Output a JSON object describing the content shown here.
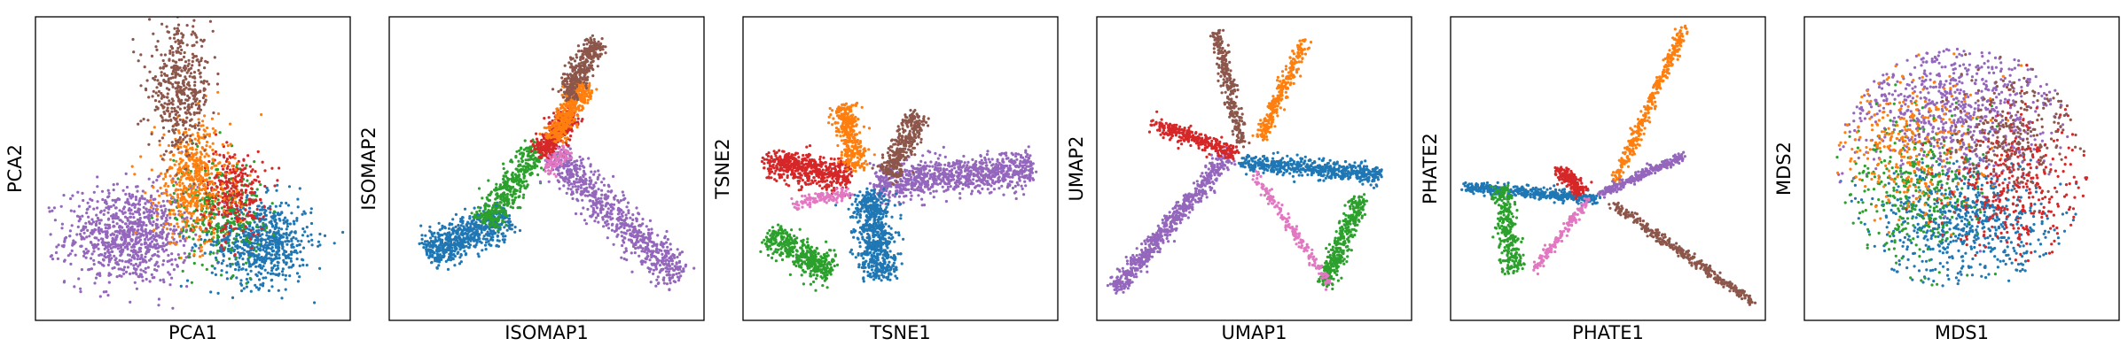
{
  "palette": {
    "blue": "#1f77b4",
    "orange": "#ff7f0e",
    "green": "#2ca02c",
    "red": "#d62728",
    "purple": "#9467bd",
    "brown": "#8c564b",
    "pink": "#e377c2"
  },
  "chart_data": [
    {
      "type": "scatter",
      "xlabel": "PCA1",
      "ylabel": "PCA2",
      "xlim": [
        0,
        100
      ],
      "ylim": [
        0,
        100
      ],
      "grid": false,
      "legend": "none",
      "ticks": "hidden",
      "clusters": [
        {
          "color": "purple",
          "center": [
            30,
            28
          ],
          "spread": [
            10,
            8
          ],
          "n": 900
        },
        {
          "color": "blue",
          "center": [
            72,
            26
          ],
          "spread": [
            8,
            7
          ],
          "n": 700
        },
        {
          "color": "green",
          "center": [
            58,
            36
          ],
          "spread": [
            7,
            9
          ],
          "n": 300
        },
        {
          "color": "red",
          "center": [
            63,
            42
          ],
          "spread": [
            5,
            7
          ],
          "n": 300
        },
        {
          "color": "orange",
          "center": [
            50,
            46
          ],
          "spread": [
            6,
            10
          ],
          "n": 500
        },
        {
          "color": "brown",
          "center": [
            46,
            76
          ],
          "spread": [
            5,
            10
          ],
          "n": 450
        }
      ]
    },
    {
      "type": "scatter",
      "xlabel": "ISOMAP1",
      "ylabel": "ISOMAP2",
      "xlim": [
        0,
        100
      ],
      "ylim": [
        0,
        100
      ],
      "grid": false,
      "legend": "none",
      "ticks": "hidden",
      "arms": [
        {
          "color": "blue",
          "from": [
            12,
            22
          ],
          "to": [
            38,
            34
          ],
          "width": 6,
          "n": 650
        },
        {
          "color": "green",
          "from": [
            30,
            32
          ],
          "to": [
            48,
            58
          ],
          "width": 5,
          "n": 450
        },
        {
          "color": "purple",
          "from": [
            52,
            55
          ],
          "to": [
            92,
            14
          ],
          "width": 6,
          "n": 750
        },
        {
          "color": "red",
          "from": [
            48,
            55
          ],
          "to": [
            58,
            68
          ],
          "width": 4,
          "n": 350
        },
        {
          "color": "orange",
          "from": [
            52,
            60
          ],
          "to": [
            62,
            78
          ],
          "width": 4,
          "n": 400
        },
        {
          "color": "brown",
          "from": [
            56,
            74
          ],
          "to": [
            66,
            92
          ],
          "width": 3.5,
          "n": 350
        },
        {
          "color": "pink",
          "from": [
            50,
            50
          ],
          "to": [
            56,
            56
          ],
          "width": 3,
          "n": 80
        }
      ]
    },
    {
      "type": "scatter",
      "xlabel": "TSNE1",
      "ylabel": "TSNE2",
      "xlim": [
        0,
        100
      ],
      "ylim": [
        0,
        100
      ],
      "grid": false,
      "legend": "none",
      "ticks": "hidden",
      "arms": [
        {
          "color": "purple",
          "from": [
            42,
            45
          ],
          "to": [
            92,
            50
          ],
          "width": 6,
          "n": 900
        },
        {
          "color": "red",
          "from": [
            8,
            52
          ],
          "to": [
            34,
            47
          ],
          "width": 5,
          "n": 550
        },
        {
          "color": "orange",
          "from": [
            32,
            71
          ],
          "to": [
            36,
            50
          ],
          "width": 4,
          "n": 350
        },
        {
          "color": "brown",
          "from": [
            56,
            68
          ],
          "to": [
            46,
            48
          ],
          "width": 4,
          "n": 350
        },
        {
          "color": "blue",
          "from": [
            40,
            42
          ],
          "to": [
            44,
            14
          ],
          "width": 6,
          "n": 650
        },
        {
          "color": "green",
          "from": [
            8,
            28
          ],
          "to": [
            28,
            16
          ],
          "width": 5,
          "n": 450
        },
        {
          "color": "pink",
          "from": [
            16,
            38
          ],
          "to": [
            34,
            42
          ],
          "width": 2,
          "n": 120
        }
      ]
    },
    {
      "type": "scatter",
      "xlabel": "UMAP1",
      "ylabel": "UMAP2",
      "xlim": [
        0,
        100
      ],
      "ylim": [
        0,
        100
      ],
      "grid": false,
      "legend": "none",
      "ticks": "hidden",
      "arms": [
        {
          "color": "purple",
          "from": [
            6,
            10
          ],
          "to": [
            42,
            55
          ],
          "width": 3,
          "n": 650
        },
        {
          "color": "brown",
          "from": [
            38,
            95
          ],
          "to": [
            46,
            58
          ],
          "width": 2.2,
          "n": 280
        },
        {
          "color": "orange",
          "from": [
            66,
            92
          ],
          "to": [
            52,
            60
          ],
          "width": 2.2,
          "n": 280
        },
        {
          "color": "red",
          "from": [
            18,
            65
          ],
          "to": [
            44,
            55
          ],
          "width": 2.8,
          "n": 300
        },
        {
          "color": "blue",
          "from": [
            46,
            52
          ],
          "to": [
            90,
            48
          ],
          "width": 3,
          "n": 550
        },
        {
          "color": "green",
          "from": [
            84,
            40
          ],
          "to": [
            72,
            12
          ],
          "width": 3,
          "n": 350
        },
        {
          "color": "pink",
          "from": [
            50,
            48
          ],
          "to": [
            74,
            12
          ],
          "width": 1.5,
          "n": 180
        }
      ]
    },
    {
      "type": "scatter",
      "xlabel": "PHATE1",
      "ylabel": "PHATE2",
      "xlim": [
        0,
        100
      ],
      "ylim": [
        0,
        100
      ],
      "grid": false,
      "legend": "none",
      "ticks": "hidden",
      "arms": [
        {
          "color": "orange",
          "from": [
            52,
            45
          ],
          "to": [
            74,
            96
          ],
          "width": 1.8,
          "n": 350
        },
        {
          "color": "brown",
          "from": [
            52,
            38
          ],
          "to": [
            96,
            6
          ],
          "width": 1.6,
          "n": 350
        },
        {
          "color": "purple",
          "from": [
            48,
            42
          ],
          "to": [
            74,
            54
          ],
          "width": 1.4,
          "n": 300
        },
        {
          "color": "blue",
          "from": [
            4,
            44
          ],
          "to": [
            46,
            40
          ],
          "width": 1.8,
          "n": 450
        },
        {
          "color": "green",
          "from": [
            16,
            44
          ],
          "to": [
            20,
            16
          ],
          "width": 3.5,
          "n": 300
        },
        {
          "color": "red",
          "from": [
            34,
            50
          ],
          "to": [
            42,
            42
          ],
          "width": 2.5,
          "n": 180
        },
        {
          "color": "pink",
          "from": [
            26,
            16
          ],
          "to": [
            44,
            40
          ],
          "width": 1.5,
          "n": 150
        }
      ]
    },
    {
      "type": "scatter",
      "xlabel": "MDS1",
      "ylabel": "MDS2",
      "xlim": [
        0,
        100
      ],
      "ylim": [
        0,
        100
      ],
      "grid": false,
      "legend": "none",
      "ticks": "hidden",
      "disk": {
        "center": [
          50,
          50
        ],
        "radius": 40
      },
      "clusters": [
        {
          "color": "blue",
          "center": [
            50,
            32
          ],
          "spread": [
            14,
            10
          ],
          "n": 650
        },
        {
          "color": "purple",
          "center": [
            46,
            68
          ],
          "spread": [
            16,
            11
          ],
          "n": 750
        },
        {
          "color": "green",
          "center": [
            35,
            42
          ],
          "spread": [
            11,
            12
          ],
          "n": 350
        },
        {
          "color": "orange",
          "center": [
            34,
            58
          ],
          "spread": [
            11,
            12
          ],
          "n": 300
        },
        {
          "color": "red",
          "center": [
            68,
            45
          ],
          "spread": [
            11,
            12
          ],
          "n": 350
        },
        {
          "color": "brown",
          "center": [
            66,
            62
          ],
          "spread": [
            10,
            10
          ],
          "n": 250
        }
      ]
    }
  ]
}
